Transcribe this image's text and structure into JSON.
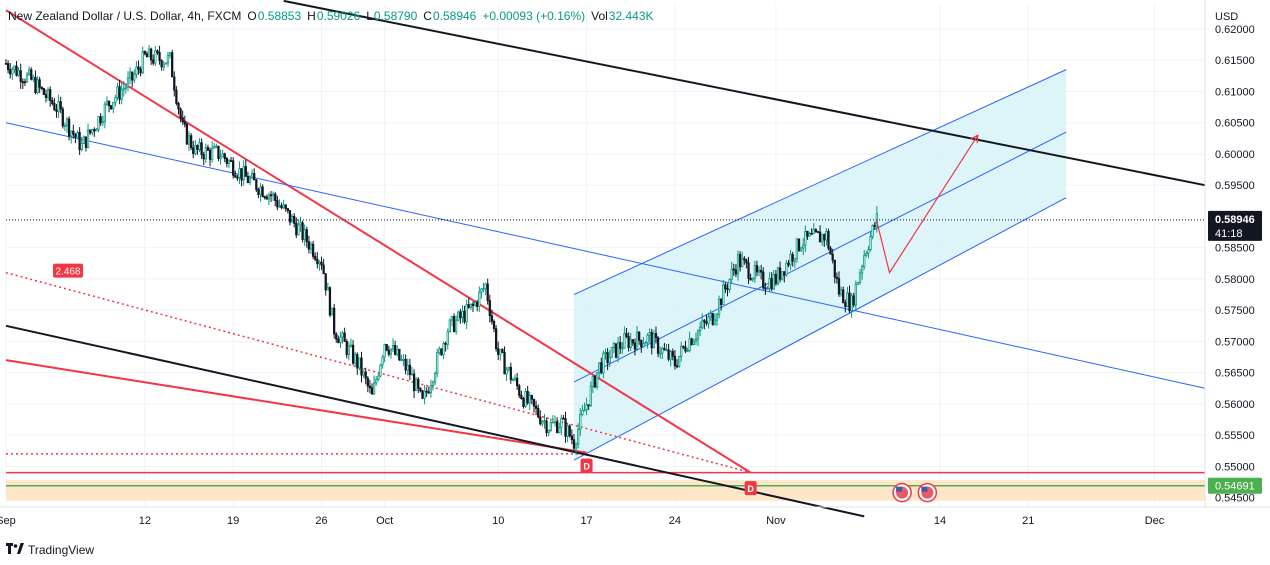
{
  "header": {
    "symbol": "New Zealand Dollar / U.S. Dollar, 4h, FXCM",
    "open_label": "O",
    "open": "0.58853",
    "high_label": "H",
    "high": "0.59026",
    "low_label": "L",
    "low": "0.58790",
    "close_label": "C",
    "close": "0.58946",
    "change": "+0.00093 (+0.16%)",
    "volume_label": "Vol",
    "volume": "32.443K"
  },
  "brand": {
    "name": "TradingView",
    "logo": "tv-logo-icon"
  },
  "colors": {
    "up": "#089981",
    "down": "#131722",
    "red_line": "#f23645",
    "blue_line": "#2962ff",
    "channel_fill": "#d9f3f8",
    "support_fill": "#fde7c8",
    "green_line": "#4caf50"
  },
  "chart_data": {
    "type": "candlestick",
    "currency": "USD",
    "y_axis": {
      "range": [
        0.5435,
        0.624
      ],
      "ticks": [
        "0.62000",
        "0.61500",
        "0.61000",
        "0.60500",
        "0.60000",
        "0.59500",
        "0.58500",
        "0.58000",
        "0.57500",
        "0.57000",
        "0.56500",
        "0.56000",
        "0.55500",
        "0.55000",
        "0.54500"
      ]
    },
    "x_axis": {
      "range": [
        "2024-09-01",
        "2024-12-05"
      ],
      "ticks": [
        {
          "label": "Sep",
          "date": "2024-09-01"
        },
        {
          "label": "12",
          "date": "2024-09-12"
        },
        {
          "label": "19",
          "date": "2024-09-19"
        },
        {
          "label": "26",
          "date": "2024-09-26"
        },
        {
          "label": "Oct",
          "date": "2024-10-01"
        },
        {
          "label": "10",
          "date": "2024-10-10"
        },
        {
          "label": "17",
          "date": "2024-10-17"
        },
        {
          "label": "24",
          "date": "2024-10-24"
        },
        {
          "label": "Nov",
          "date": "2024-11-01"
        },
        {
          "label": "14",
          "date": "2024-11-14"
        },
        {
          "label": "21",
          "date": "2024-11-21"
        },
        {
          "label": "Dec",
          "date": "2024-12-01"
        }
      ]
    },
    "price_path": [
      [
        "2024-09-01",
        0.6145
      ],
      [
        "2024-09-03",
        0.6118
      ],
      [
        "2024-09-05",
        0.6075
      ],
      [
        "2024-09-07",
        0.6012
      ],
      [
        "2024-09-09",
        0.6078
      ],
      [
        "2024-09-11",
        0.612
      ],
      [
        "2024-09-12",
        0.6155
      ],
      [
        "2024-09-14",
        0.615
      ],
      [
        "2024-09-15",
        0.604
      ],
      [
        "2024-09-16",
        0.6005
      ],
      [
        "2024-09-18",
        0.6
      ],
      [
        "2024-09-20",
        0.5962
      ],
      [
        "2024-09-22",
        0.5935
      ],
      [
        "2024-09-24",
        0.5885
      ],
      [
        "2024-09-26",
        0.583
      ],
      [
        "2024-09-27",
        0.572
      ],
      [
        "2024-09-29",
        0.566
      ],
      [
        "2024-09-30",
        0.561
      ],
      [
        "2024-10-01",
        0.57
      ],
      [
        "2024-10-03",
        0.565
      ],
      [
        "2024-10-04",
        0.56
      ],
      [
        "2024-10-06",
        0.572
      ],
      [
        "2024-10-08",
        0.5755
      ],
      [
        "2024-10-09",
        0.579
      ],
      [
        "2024-10-10",
        0.568
      ],
      [
        "2024-10-12",
        0.561
      ],
      [
        "2024-10-14",
        0.5565
      ],
      [
        "2024-10-15",
        0.557
      ],
      [
        "2024-10-16",
        0.554
      ],
      [
        "2024-10-17",
        0.56
      ],
      [
        "2024-10-18",
        0.566
      ],
      [
        "2024-10-20",
        0.57
      ],
      [
        "2024-10-22",
        0.5705
      ],
      [
        "2024-10-24",
        0.5665
      ],
      [
        "2024-10-25",
        0.57
      ],
      [
        "2024-10-27",
        0.574
      ],
      [
        "2024-10-29",
        0.583
      ],
      [
        "2024-10-31",
        0.5795
      ],
      [
        "2024-11-01",
        0.58
      ],
      [
        "2024-11-03",
        0.586
      ],
      [
        "2024-11-05",
        0.587
      ],
      [
        "2024-11-06",
        0.578
      ],
      [
        "2024-11-07",
        0.576
      ],
      [
        "2024-11-08",
        0.584
      ],
      [
        "2024-11-09",
        0.5895
      ]
    ],
    "current_price": "0.58946",
    "countdown": "41:18",
    "support_price": "0.54691",
    "support_zone": [
      0.5445,
      0.5478
    ],
    "resistance_line_price": 0.549,
    "ratio_label": "2.468",
    "marker_label": "D",
    "markers": [
      {
        "date": "2024-10-17",
        "price": 0.5522
      },
      {
        "date": "2024-10-30",
        "price": 0.5486
      }
    ],
    "events": [
      {
        "date": "2024-11-11",
        "price": 0.5458,
        "icon": "us-flag-icon"
      },
      {
        "date": "2024-11-13",
        "price": 0.5458,
        "icon": "us-flag-icon"
      }
    ],
    "projection": [
      [
        "2024-11-09",
        0.5892
      ],
      [
        "2024-11-10",
        0.581
      ],
      [
        "2024-11-17",
        0.603
      ]
    ],
    "trendlines": [
      {
        "color": "red",
        "style": "solid",
        "from": [
          "2024-09-01",
          0.623
        ],
        "to": [
          "2024-10-30",
          0.549
        ]
      },
      {
        "color": "red",
        "style": "solid",
        "from": [
          "2024-09-01",
          0.567
        ],
        "to": [
          "2024-10-17",
          0.5522
        ]
      },
      {
        "color": "red",
        "style": "dotted",
        "from": [
          "2024-09-01",
          0.581
        ],
        "to": [
          "2024-10-30",
          0.549
        ]
      },
      {
        "color": "red",
        "style": "dotted",
        "from": [
          "2024-09-01",
          0.552
        ],
        "to": [
          "2024-10-17",
          0.552
        ]
      },
      {
        "color": "black",
        "style": "solid",
        "from": [
          "2024-09-01",
          0.5725
        ],
        "to": [
          "2024-11-08",
          0.542
        ]
      },
      {
        "color": "black",
        "style": "solid",
        "from": [
          "2024-09-23",
          0.6245
        ],
        "to": [
          "2024-12-05",
          0.595
        ]
      },
      {
        "color": "blue",
        "style": "solid",
        "from": [
          "2024-09-01",
          0.605
        ],
        "to": [
          "2024-12-05",
          0.5625
        ]
      }
    ],
    "channel": {
      "start": "2024-10-16",
      "end": "2024-11-24",
      "upper": [
        0.5775,
        0.6135
      ],
      "middle": [
        0.5635,
        0.6035
      ],
      "lower": [
        0.551,
        0.593
      ]
    }
  }
}
